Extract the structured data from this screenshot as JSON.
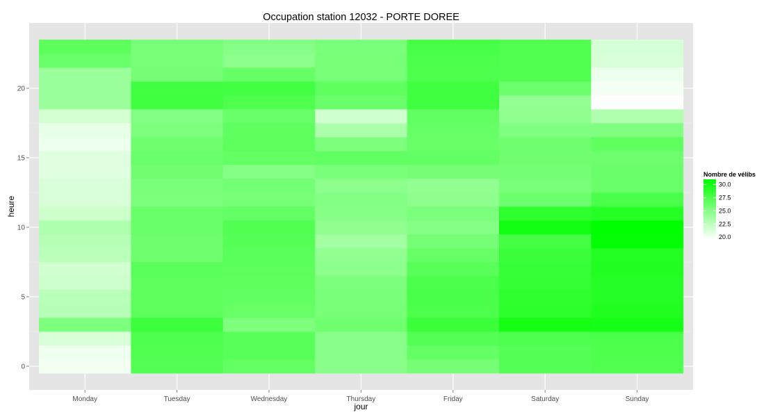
{
  "chart_data": {
    "type": "heatmap",
    "title": "Occupation station 12032 - PORTE DOREE",
    "xlabel": "jour",
    "ylabel": "heure",
    "x_categories": [
      "Monday",
      "Tuesday",
      "Wednesday",
      "Thursday",
      "Friday",
      "Saturday",
      "Sunday"
    ],
    "y_range": [
      -0.5,
      23.5
    ],
    "y_ticks": [
      0,
      5,
      10,
      15,
      20
    ],
    "y_tick_labels": [
      "0",
      "5",
      "10",
      "15",
      "20"
    ],
    "grid": true,
    "legend": {
      "title": "Nombre de vélibs",
      "placement": "right",
      "low": 19.5,
      "high": 31.0,
      "breaks": [
        30.0,
        27.5,
        25.0,
        22.5,
        20.0
      ],
      "labels": [
        "30.0",
        "27.5",
        "25.0",
        "22.5",
        "20.0"
      ],
      "low_color": "#ffffff",
      "high_color": "#00ff00"
    },
    "hours": [
      0,
      1,
      2,
      3,
      4,
      5,
      6,
      7,
      8,
      9,
      10,
      11,
      12,
      13,
      14,
      15,
      16,
      17,
      18,
      19,
      20,
      21,
      22,
      23
    ],
    "values": {
      "Monday": [
        20.0,
        20.2,
        21.2,
        25.3,
        22.8,
        22.7,
        21.8,
        21.6,
        22.6,
        22.8,
        23.2,
        21.8,
        21.2,
        21.2,
        20.9,
        20.9,
        20.3,
        20.6,
        21.5,
        24.0,
        24.0,
        24.0,
        26.3,
        26.8
      ],
      "Tuesday": [
        27.3,
        27.4,
        27.5,
        28.2,
        26.8,
        26.8,
        26.7,
        26.9,
        26.1,
        26.0,
        26.3,
        26.3,
        25.4,
        25.5,
        25.9,
        26.2,
        26.0,
        25.3,
        25.1,
        28.1,
        28.0,
        25.7,
        25.6,
        25.6
      ],
      "Wednesday": [
        26.5,
        27.0,
        27.0,
        25.3,
        26.4,
        26.6,
        26.7,
        26.8,
        26.9,
        27.1,
        27.4,
        26.5,
        25.6,
        25.8,
        25.0,
        26.5,
        26.8,
        26.7,
        26.3,
        27.5,
        28.0,
        26.4,
        24.7,
        25.0
      ],
      "Thursday": [
        24.8,
        24.8,
        24.8,
        26.0,
        25.6,
        25.5,
        25.4,
        24.7,
        24.4,
        23.7,
        24.5,
        24.9,
        25.1,
        24.7,
        25.5,
        26.6,
        25.3,
        23.3,
        21.6,
        26.2,
        26.7,
        25.6,
        25.6,
        25.5
      ],
      "Friday": [
        25.7,
        26.5,
        27.2,
        28.3,
        27.6,
        27.7,
        27.6,
        27.0,
        26.4,
        25.7,
        25.0,
        25.4,
        24.6,
        24.4,
        25.7,
        26.5,
        26.3,
        26.4,
        26.6,
        28.1,
        28.1,
        27.5,
        27.6,
        27.8
      ],
      "Saturday": [
        27.1,
        27.1,
        27.5,
        30.1,
        29.0,
        28.9,
        28.6,
        28.5,
        28.4,
        27.9,
        30.2,
        28.9,
        26.1,
        25.5,
        25.8,
        25.9,
        26.0,
        25.2,
        24.5,
        24.4,
        26.1,
        27.4,
        27.4,
        27.4
      ],
      "Sunday": [
        27.4,
        27.5,
        27.6,
        30.0,
        29.5,
        29.3,
        29.3,
        29.5,
        29.4,
        30.8,
        31.0,
        29.3,
        27.7,
        26.3,
        26.2,
        26.1,
        26.7,
        25.2,
        23.1,
        19.5,
        19.9,
        20.3,
        21.2,
        21.4
      ]
    }
  }
}
